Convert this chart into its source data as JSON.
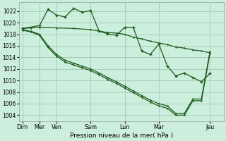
{
  "background_color": "#cceedd",
  "grid_color": "#aaccbb",
  "line_color": "#1a5c1a",
  "xlabel_text": "Pression niveau de la mer( hPa )",
  "ylim": [
    1003.0,
    1023.5
  ],
  "yticks": [
    1004,
    1006,
    1008,
    1010,
    1012,
    1014,
    1016,
    1018,
    1020,
    1022
  ],
  "xtick_positions": [
    0,
    1,
    2,
    4,
    6,
    8,
    11
  ],
  "xtick_labels": [
    "Dim",
    "Mer",
    "Ven",
    "Sam",
    "Lun",
    "Mar",
    "Jeu"
  ],
  "xlim": [
    -0.2,
    11.8
  ],
  "line1_x": [
    0,
    1,
    1.5,
    2,
    2.5,
    3,
    3.5,
    4,
    4.5,
    5,
    5.5,
    6,
    6.5,
    7,
    7.5,
    8,
    8.5,
    9,
    9.5,
    10,
    10.5,
    11
  ],
  "line1_y": [
    1019.0,
    1019.5,
    1022.3,
    1021.3,
    1021.0,
    1022.5,
    1021.8,
    1022.1,
    1018.5,
    1018.1,
    1017.8,
    1019.2,
    1019.2,
    1015.1,
    1014.5,
    1016.3,
    1012.5,
    1010.8,
    1011.3,
    1010.5,
    1009.8,
    1011.2
  ],
  "line1_lw": 0.9,
  "line1_ms": 2.5,
  "line2_x": [
    0,
    0.5,
    1,
    2,
    3,
    4,
    5,
    5.5,
    6,
    6.5,
    7,
    7.5,
    8,
    8.5,
    9,
    9.5,
    10,
    10.5,
    11
  ],
  "line2_y": [
    1019.0,
    1019.1,
    1019.2,
    1019.1,
    1019.0,
    1018.8,
    1018.3,
    1018.2,
    1018.0,
    1017.5,
    1017.2,
    1016.8,
    1016.5,
    1016.2,
    1015.8,
    1015.6,
    1015.3,
    1015.1,
    1014.8
  ],
  "line2_lw": 0.9,
  "line2_ms": 2.0,
  "line3_x": [
    0,
    0.5,
    1,
    1.5,
    2,
    2.5,
    3,
    3.5,
    4,
    4.5,
    5,
    5.5,
    6,
    6.5,
    7,
    7.5,
    8,
    8.5,
    9,
    9.5,
    10,
    10.5,
    11
  ],
  "line3_y": [
    1018.8,
    1018.5,
    1018.0,
    1016.0,
    1014.5,
    1013.5,
    1013.0,
    1012.5,
    1012.0,
    1011.3,
    1010.5,
    1009.8,
    1009.0,
    1008.2,
    1007.4,
    1006.6,
    1006.0,
    1005.6,
    1004.3,
    1004.3,
    1006.8,
    1006.8,
    1015.0
  ],
  "line3_lw": 0.9,
  "line3_ms": 2.0,
  "line4_x": [
    0,
    0.5,
    1,
    1.5,
    2,
    2.5,
    3,
    3.5,
    4,
    4.5,
    5,
    5.5,
    6,
    6.5,
    7,
    7.5,
    8,
    8.5,
    9,
    9.5,
    10,
    10.5,
    11
  ],
  "line4_y": [
    1018.7,
    1018.4,
    1017.8,
    1015.7,
    1014.2,
    1013.2,
    1012.7,
    1012.2,
    1011.7,
    1011.0,
    1010.2,
    1009.5,
    1008.7,
    1007.9,
    1007.1,
    1006.3,
    1005.6,
    1005.2,
    1004.0,
    1004.0,
    1006.5,
    1006.5,
    1014.6
  ],
  "line4_lw": 0.9,
  "line4_ms": 2.0
}
